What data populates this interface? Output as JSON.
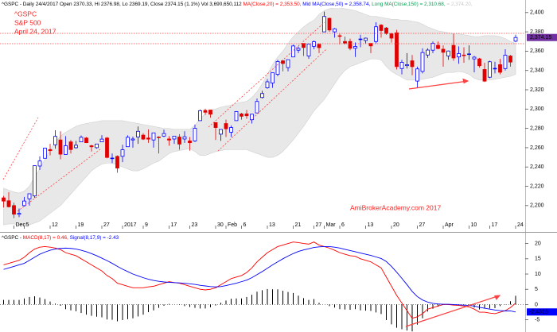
{
  "chart_data": [
    {
      "type": "candlestick",
      "header": [
        {
          "text": "^GSPC - Daily 24/4/2017 Open 2370.33, Hi 2376.98, Lo 2369.19, Close 2374.15 (1.1%) Vol 3,690,650,112 ",
          "color": "#000000"
        },
        {
          "text": "MA(Close,20) = 2,353.50, ",
          "color": "#ff0000"
        },
        {
          "text": "Mid MA(Close,50) = 2,358.74, ",
          "color": "#0000ff"
        },
        {
          "text": "Long MA(Close,150) = 2,310.68, ",
          "color": "#00a050"
        },
        {
          "text": "= 2,374.20,",
          "color": "#c8c8c8"
        }
      ],
      "labels": [
        "^GSPC",
        "S&P 500",
        "April 24, 2017"
      ],
      "watermark": "AmiBrokerAcademy.com  2017",
      "close_label": "2,374.15",
      "up_color": "#0000ff",
      "down_color": "#e00000",
      "label_color": "#ff2020",
      "categories": [
        null,
        null,
        "Dec",
        null,
        "5",
        null,
        null,
        null,
        null,
        "12",
        null,
        null,
        null,
        null,
        "19",
        null,
        null,
        null,
        null,
        "27",
        null,
        null,
        null,
        "2017",
        null,
        null,
        null,
        "9",
        null,
        null,
        null,
        null,
        "17",
        null,
        null,
        null,
        "23",
        null,
        null,
        null,
        null,
        "30",
        null,
        "Feb",
        null,
        null,
        "6",
        null,
        null,
        null,
        null,
        "13",
        null,
        null,
        null,
        null,
        "21",
        null,
        null,
        null,
        "27",
        null,
        "Mar",
        null,
        null,
        "6",
        null,
        null,
        null,
        null,
        "13",
        null,
        null,
        null,
        null,
        "20",
        null,
        null,
        null,
        null,
        "27",
        null,
        null,
        null,
        null,
        "Apr",
        null,
        null,
        null,
        null,
        "10",
        null,
        null,
        null,
        "17",
        null,
        null,
        null,
        null,
        "24"
      ],
      "open": [
        2208,
        2204.97,
        2200,
        2191,
        2200,
        2207,
        2210,
        2241,
        2249,
        2258,
        2263,
        2268,
        2253,
        2266,
        2260,
        2266,
        2270,
        2262,
        2260,
        2266,
        2270,
        2249,
        2251,
        2251,
        2261,
        2268,
        2271,
        2273,
        2270,
        2268,
        2271,
        2272,
        2269,
        2269,
        2271,
        2269,
        2267,
        2267,
        2288,
        2298.6,
        2299,
        2286,
        2274,
        2285,
        2276,
        2288,
        2295,
        2295,
        2289,
        2296,
        2312,
        2322,
        2327,
        2336,
        2350,
        2343,
        2354,
        2361,
        2368,
        2355,
        2365,
        2367,
        2380,
        2394,
        2380,
        2376,
        2370,
        2370,
        2363,
        2372,
        2371,
        2368,
        2370,
        2387,
        2384,
        2378,
        2379,
        2342,
        2345,
        2350,
        2329,
        2339,
        2356,
        2361,
        2366,
        2362,
        2355,
        2366,
        2354,
        2356,
        2357,
        2352,
        2352,
        2341,
        2333,
        2342,
        2346,
        2342,
        2355,
        2370.33
      ],
      "high": [
        2210,
        2214,
        2203,
        2197,
        2209,
        2212,
        2241.5,
        2251,
        2259.8,
        2264,
        2278,
        2277,
        2272,
        2268,
        2267,
        2272.6,
        2271,
        2263,
        2264,
        2273,
        2271,
        2254,
        2252,
        2263,
        2272.8,
        2271.5,
        2282,
        2275,
        2279,
        2275.5,
        2271.8,
        2278.7,
        2272,
        2272,
        2274,
        2277,
        2271,
        2284,
        2299.5,
        2300.4,
        2299,
        2286,
        2279,
        2289,
        2283,
        2298,
        2296,
        2299,
        2295,
        2311,
        2319,
        2331,
        2337.6,
        2351,
        2351,
        2351.3,
        2366.7,
        2365,
        2368.3,
        2368,
        2371,
        2368,
        2401,
        2394.8,
        2384,
        2378,
        2375,
        2373,
        2369,
        2377,
        2374,
        2368.5,
        2390,
        2388,
        2385,
        2379,
        2382,
        2351,
        2358,
        2356,
        2344,
        2363,
        2363,
        2370,
        2370,
        2366,
        2360.5,
        2378,
        2365,
        2364,
        2366,
        2355,
        2353,
        2348,
        2350,
        2349,
        2352,
        2362,
        2356,
        2376.98
      ],
      "low": [
        2198,
        2198,
        2187,
        2188,
        2199,
        2200,
        2208,
        2237,
        2249,
        2252,
        2259,
        2248,
        2253,
        2254,
        2259,
        2266,
        2265,
        2256,
        2259,
        2266,
        2249,
        2244,
        2234,
        2245,
        2261,
        2260,
        2264,
        2268,
        2265,
        2260,
        2254,
        2271,
        2262,
        2264,
        2258,
        2265,
        2257,
        2266,
        2288,
        2294,
        2291,
        2268,
        2267,
        2271,
        2271,
        2288,
        2289,
        2290,
        2285,
        2296,
        2311,
        2321,
        2322,
        2334,
        2339,
        2339,
        2354,
        2358,
        2355,
        2352,
        2362,
        2358,
        2380,
        2380,
        2374,
        2367,
        2367,
        2361,
        2354,
        2364,
        2368,
        2358,
        2368,
        2374,
        2377,
        2369,
        2341,
        2336,
        2342,
        2335,
        2322,
        2337,
        2353,
        2358,
        2362,
        2344,
        2351,
        2350,
        2347,
        2348,
        2351,
        2338,
        2343,
        2328,
        2332,
        2337,
        2336,
        2340,
        2344,
        2369.19
      ],
      "close": [
        2204.66,
        2198.81,
        2191.08,
        2191.95,
        2204.71,
        2212.23,
        2241.35,
        2246.19,
        2259.53,
        2256.96,
        2271.72,
        2253.28,
        2262.03,
        2258.07,
        2262.53,
        2270.76,
        2265.18,
        2260.96,
        2263.79,
        2268.88,
        2249.92,
        2249.26,
        2238.83,
        2257.83,
        2270.75,
        2269.0,
        2276.98,
        2268.9,
        2268.9,
        2275.32,
        2270.44,
        2274.64,
        2267.89,
        2271.89,
        2263.69,
        2271.31,
        2265.2,
        2280.07,
        2298.37,
        2296.68,
        2294.69,
        2280.9,
        2278.87,
        2279.55,
        2280.85,
        2297.42,
        2292.56,
        2293.08,
        2294.67,
        2307.87,
        2316.1,
        2328.25,
        2337.58,
        2349.25,
        2347.22,
        2351.16,
        2365.38,
        2362.82,
        2363.81,
        2367.34,
        2369.75,
        2363.64,
        2395.96,
        2381.92,
        2383.12,
        2375.31,
        2368.39,
        2362.98,
        2364.87,
        2372.6,
        2373.47,
        2365.45,
        2385.26,
        2381.38,
        2378.25,
        2373.47,
        2344.02,
        2348.45,
        2345.96,
        2343.98,
        2341.59,
        2358.57,
        2361.13,
        2368.06,
        2362.72,
        2358.84,
        2360.16,
        2352.95,
        2357.49,
        2355.54,
        2357.16,
        2353.78,
        2344.93,
        2328.95,
        2349.01,
        2342.19,
        2338.17,
        2355.84,
        2348.69,
        2374.15
      ],
      "band": {
        "color": "#e8e8e8",
        "upper": [
          2218,
          2216,
          2214,
          2213,
          2215,
          2220,
          2230,
          2238,
          2248,
          2258,
          2266,
          2272,
          2276,
          2279,
          2282,
          2284,
          2285,
          2286,
          2287,
          2288,
          2288,
          2288,
          2288,
          2288,
          2287,
          2286,
          2285,
          2284,
          2283,
          2282,
          2281,
          2280,
          2280,
          2279,
          2279,
          2279,
          2279,
          2283,
          2290,
          2295,
          2299,
          2300,
          2302,
          2303,
          2304,
          2306,
          2307,
          2308,
          2312,
          2318,
          2326,
          2336,
          2346,
          2354,
          2360,
          2368,
          2375,
          2380,
          2385,
          2389,
          2392,
          2398,
          2402,
          2404,
          2405,
          2405,
          2404,
          2403,
          2402,
          2400,
          2398,
          2396,
          2396,
          2395,
          2394,
          2393,
          2393,
          2392,
          2392,
          2391,
          2390,
          2388,
          2385,
          2383,
          2381,
          2380,
          2379,
          2378,
          2378,
          2377,
          2376,
          2375,
          2375,
          2376,
          2376,
          2376,
          2375,
          2373,
          2370,
          2368
        ],
        "lower": [
          2180,
          2181,
          2181,
          2180,
          2180,
          2180,
          2182,
          2184,
          2188,
          2192,
          2196,
          2200,
          2206,
          2212,
          2218,
          2224,
          2230,
          2236,
          2240,
          2243,
          2244,
          2244,
          2242,
          2240,
          2238,
          2236,
          2236,
          2238,
          2241,
          2244,
          2246,
          2250,
          2254,
          2256,
          2257,
          2258,
          2259,
          2256,
          2252,
          2252,
          2254,
          2256,
          2257,
          2258,
          2258,
          2258,
          2258,
          2258,
          2256,
          2254,
          2252,
          2250,
          2250,
          2252,
          2256,
          2262,
          2268,
          2275,
          2282,
          2290,
          2298,
          2304,
          2310,
          2318,
          2326,
          2334,
          2340,
          2344,
          2346,
          2348,
          2350,
          2352,
          2352,
          2351,
          2344,
          2339,
          2336,
          2333,
          2330,
          2330,
          2330,
          2331,
          2332,
          2333,
          2335,
          2337,
          2338,
          2338,
          2339,
          2338,
          2336,
          2332,
          2330,
          2330,
          2330,
          2331,
          2332,
          2333,
          2334,
          2336
        ]
      },
      "ylim": [
        2176,
        2413
      ],
      "yticks": [
        {
          "value": 2200,
          "label": "2,200"
        },
        {
          "value": 2220,
          "label": "2,220"
        },
        {
          "value": 2240,
          "label": "2,240"
        },
        {
          "value": 2260,
          "label": "2,260"
        },
        {
          "value": 2280,
          "label": "2,280"
        },
        {
          "value": 2300,
          "label": "2,300"
        },
        {
          "value": 2320,
          "label": "2,320"
        },
        {
          "value": 2340,
          "label": "2,340"
        },
        {
          "value": 2360,
          "label": "2,360"
        },
        {
          "value": 2380,
          "label": "2,380"
        },
        {
          "value": 2400,
          "label": "2,400"
        }
      ]
    },
    {
      "type": "macd",
      "header": [
        {
          "text": "^GSPC - ",
          "color": "#000000"
        },
        {
          "text": "MACD(8,17) = 0.46, ",
          "color": "#ff0000"
        },
        {
          "text": "Signal(8,17,9) = -2.43",
          "color": "#0000ff"
        }
      ],
      "series": [
        {
          "color": "#ff0000",
          "values": [
            13,
            13.5,
            14,
            14.5,
            15.5,
            17,
            18.2,
            18.8,
            19,
            18.8,
            18.5,
            18,
            17,
            16.5,
            16,
            15,
            14,
            13,
            12,
            11,
            9.5,
            8.5,
            7,
            6.5,
            6,
            5.5,
            5.5,
            5.5,
            5.8,
            6,
            6.5,
            7,
            7.5,
            7.2,
            7,
            6.5,
            6,
            5.5,
            5,
            4.8,
            5,
            5.5,
            6.5,
            7.5,
            8.5,
            9,
            9.5,
            10.5,
            12,
            14,
            15.5,
            17,
            18,
            19,
            19.5,
            20,
            20.5,
            20.3,
            20,
            19.8,
            20.5,
            19.5,
            19,
            18.5,
            17.8,
            17,
            16.5,
            16,
            15.8,
            15,
            14.5,
            14,
            13,
            12,
            9,
            6,
            3,
            0.5,
            -2,
            -4.5,
            -4,
            -3,
            -1.5,
            -1,
            -0.5,
            0,
            0,
            -0.2,
            -0.3,
            -0.5,
            -0.8,
            -1.5,
            -2.5,
            -2.5,
            -2.8,
            -3,
            -2.5,
            -2,
            -1,
            0.46
          ]
        },
        {
          "color": "#0000ff",
          "values": [
            11.5,
            12,
            12.5,
            13,
            13.5,
            14.5,
            15.5,
            16.5,
            17.2,
            17.8,
            18.2,
            18.4,
            18.5,
            18.4,
            18.2,
            17.8,
            17.3,
            16.7,
            16,
            15.2,
            14.4,
            13.5,
            12.5,
            11.6,
            10.8,
            10,
            9.4,
            8.8,
            8.3,
            7.9,
            7.6,
            7.4,
            7.3,
            7.2,
            7.1,
            7,
            6.8,
            6.6,
            6.3,
            6.1,
            5.9,
            5.8,
            5.9,
            6.2,
            6.6,
            7,
            7.5,
            8,
            8.8,
            9.8,
            10.8,
            11.9,
            13,
            14,
            15,
            15.9,
            16.7,
            17.4,
            17.9,
            18.3,
            18.7,
            18.9,
            19,
            19,
            18.8,
            18.5,
            18.1,
            17.7,
            17.3,
            16.9,
            16.5,
            16.1,
            15.6,
            15.1,
            14.1,
            12.5,
            10.6,
            8.6,
            6.5,
            4.3,
            2.6,
            1.5,
            0.8,
            0.4,
            0.2,
            0.1,
            0.1,
            0,
            -0.1,
            -0.2,
            -0.3,
            -0.5,
            -0.9,
            -1.2,
            -1.5,
            -1.8,
            -2,
            -2.1,
            -2.1,
            -2.4318
          ]
        }
      ],
      "histogram": {
        "color": "#000000",
        "values": [
          1.5,
          1.5,
          1.5,
          1.5,
          2,
          2.5,
          2.7,
          2.3,
          1.8,
          1,
          0.3,
          -0.4,
          -1.5,
          -1.9,
          -2.2,
          -2.8,
          -3.3,
          -3.7,
          -4,
          -4.2,
          -4.9,
          -5,
          -5.5,
          -5.1,
          -4.8,
          -4.5,
          -3.9,
          -3.3,
          -2.5,
          -1.9,
          -1.1,
          -0.4,
          0.2,
          0,
          -0.1,
          -0.5,
          -0.8,
          -1.1,
          -1.3,
          -1.3,
          -0.9,
          -0.3,
          0.6,
          1.3,
          1.9,
          2,
          2,
          2.5,
          3.2,
          4.2,
          4.7,
          5.1,
          5,
          5,
          4.5,
          4.1,
          3.8,
          2.9,
          2.1,
          1.5,
          1.8,
          0.6,
          0,
          -0.5,
          -1,
          -1.5,
          -1.6,
          -1.7,
          -1.5,
          -1.9,
          -2,
          -2.1,
          -2.6,
          -3.1,
          -5.1,
          -6.5,
          -7.6,
          -8.1,
          -8.5,
          -8.8,
          -6.6,
          -4.5,
          -2.3,
          -1.4,
          -0.7,
          -0.1,
          -0.1,
          -0.2,
          -0.2,
          -0.3,
          -0.5,
          -1,
          -1.6,
          -1.3,
          -1.3,
          -1.2,
          -0.5,
          0.1,
          1.1,
          2.89
        ]
      },
      "ylim": [
        -9,
        22.5
      ],
      "yticks": [
        -5,
        0,
        5,
        10,
        15,
        20
      ]
    }
  ]
}
